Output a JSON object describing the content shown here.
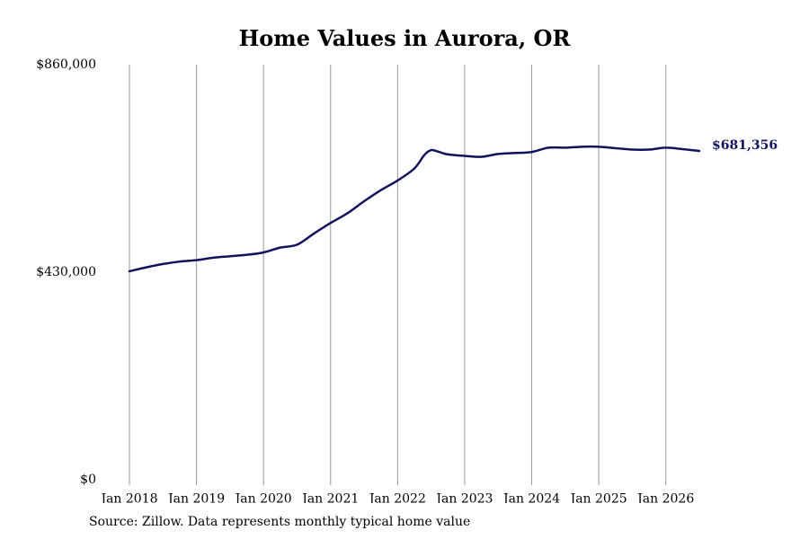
{
  "chart_data": {
    "type": "line",
    "title": "Home Values in Aurora, OR",
    "xlabel": "",
    "ylabel": "",
    "ylim": [
      0,
      860000
    ],
    "y_ticks": [
      {
        "value": 0,
        "label": "$0"
      },
      {
        "value": 430000,
        "label": "$430,000"
      },
      {
        "value": 860000,
        "label": "$860,000"
      }
    ],
    "x_ticks": [
      {
        "value": 2018,
        "label": "Jan 2018"
      },
      {
        "value": 2019,
        "label": "Jan 2019"
      },
      {
        "value": 2020,
        "label": "Jan 2020"
      },
      {
        "value": 2021,
        "label": "Jan 2021"
      },
      {
        "value": 2022,
        "label": "Jan 2022"
      },
      {
        "value": 2023,
        "label": "Jan 2023"
      },
      {
        "value": 2024,
        "label": "Jan 2024"
      },
      {
        "value": 2025,
        "label": "Jan 2025"
      },
      {
        "value": 2026,
        "label": "Jan 2026"
      }
    ],
    "xlim": [
      2018,
      2026.5
    ],
    "grid": "vertical",
    "series": [
      {
        "color": "#12125e",
        "end_label": "$681,356",
        "points": [
          [
            2018.0,
            432000
          ],
          [
            2018.25,
            440000
          ],
          [
            2018.5,
            447000
          ],
          [
            2018.75,
            452000
          ],
          [
            2019.0,
            455000
          ],
          [
            2019.25,
            460000
          ],
          [
            2019.5,
            463000
          ],
          [
            2019.75,
            466000
          ],
          [
            2020.0,
            471000
          ],
          [
            2020.25,
            481000
          ],
          [
            2020.5,
            487000
          ],
          [
            2020.75,
            510000
          ],
          [
            2021.0,
            532000
          ],
          [
            2021.25,
            552000
          ],
          [
            2021.5,
            577000
          ],
          [
            2021.75,
            600000
          ],
          [
            2022.0,
            620000
          ],
          [
            2022.25,
            645000
          ],
          [
            2022.4,
            673000
          ],
          [
            2022.5,
            683000
          ],
          [
            2022.6,
            680000
          ],
          [
            2022.75,
            674000
          ],
          [
            2023.0,
            671000
          ],
          [
            2023.25,
            669000
          ],
          [
            2023.5,
            675000
          ],
          [
            2023.75,
            677000
          ],
          [
            2024.0,
            679000
          ],
          [
            2024.25,
            688000
          ],
          [
            2024.5,
            688000
          ],
          [
            2024.75,
            690000
          ],
          [
            2025.0,
            690000
          ],
          [
            2025.25,
            687000
          ],
          [
            2025.5,
            684000
          ],
          [
            2025.75,
            684000
          ],
          [
            2026.0,
            688000
          ],
          [
            2026.25,
            685000
          ],
          [
            2026.5,
            681356
          ]
        ]
      }
    ],
    "source": "Source: Zillow. Data represents monthly typical home value"
  }
}
